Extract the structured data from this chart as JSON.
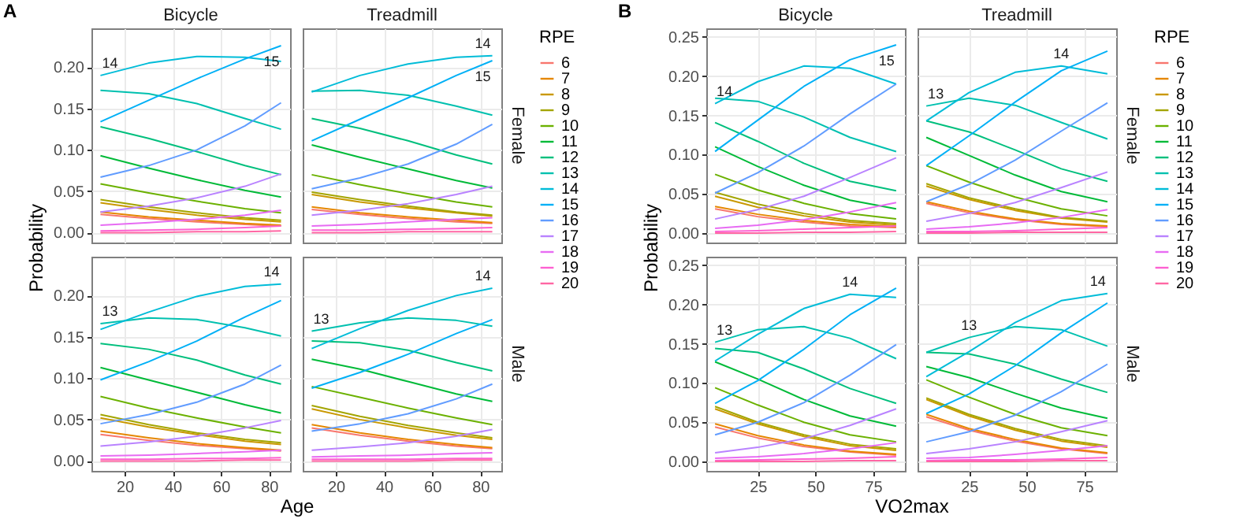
{
  "chart_data": [
    {
      "type": "line",
      "title": "Bicycle",
      "ylabel": "Probability",
      "annotations": [
        "A",
        {
          "text": "14",
          "x": 10,
          "y": 0.19
        },
        {
          "text": "15",
          "x": 85,
          "y": 0.226
        }
      ],
      "x": [
        10,
        30,
        50,
        70,
        85
      ],
      "xlim": [
        6.25,
        88.75
      ],
      "xticks": [
        20,
        40,
        60,
        80
      ],
      "ylim": [
        -0.012,
        0.247
      ],
      "yticks": [
        {
          "value": 0,
          "label": "0.00"
        },
        {
          "value": 0.05,
          "label": "0.05"
        },
        {
          "value": 0.1,
          "label": "0.10"
        },
        {
          "value": 0.15,
          "label": "0.15"
        },
        {
          "value": 0.2,
          "label": "0.20"
        }
      ],
      "tick_labels": "y",
      "grid": true,
      "series": [
        {
          "color": "#f8766d",
          "values": [
            0.022,
            0.017,
            0.013,
            0.01,
            0.008
          ]
        },
        {
          "color": "#e58700",
          "values": [
            0.025,
            0.019,
            0.015,
            0.011,
            0.009
          ]
        },
        {
          "color": "#c99800",
          "values": [
            0.036,
            0.028,
            0.021,
            0.016,
            0.013
          ]
        },
        {
          "color": "#a3a500",
          "values": [
            0.04,
            0.031,
            0.024,
            0.018,
            0.015
          ]
        },
        {
          "color": "#6bb100",
          "values": [
            0.059,
            0.048,
            0.038,
            0.029,
            0.024
          ]
        },
        {
          "color": "#00ba38",
          "values": [
            0.093,
            0.078,
            0.064,
            0.051,
            0.043
          ]
        },
        {
          "color": "#00bf7d",
          "values": [
            0.128,
            0.114,
            0.098,
            0.081,
            0.07
          ]
        },
        {
          "color": "#00c0af",
          "values": [
            0.172,
            0.168,
            0.156,
            0.138,
            0.125
          ]
        },
        {
          "color": "#00bcd8",
          "values": [
            0.19,
            0.205,
            0.213,
            0.212,
            0.207
          ]
        },
        {
          "color": "#00b0f6",
          "values": [
            0.134,
            0.16,
            0.186,
            0.21,
            0.226
          ]
        },
        {
          "color": "#619cff",
          "values": [
            0.067,
            0.081,
            0.1,
            0.129,
            0.157
          ]
        },
        {
          "color": "#b983ff",
          "values": [
            0.025,
            0.032,
            0.042,
            0.056,
            0.071
          ]
        },
        {
          "color": "#e76bf3",
          "values": [
            0.009,
            0.012,
            0.016,
            0.021,
            0.027
          ]
        },
        {
          "color": "#fd61d1",
          "values": [
            0.002,
            0.003,
            0.004,
            0.006,
            0.008
          ]
        },
        {
          "color": "#ff67a4",
          "values": [
            0.0,
            0.0,
            0.001,
            0.001,
            0.002
          ]
        }
      ]
    },
    {
      "type": "line",
      "title": "Treadmill",
      "subtitle": "Female",
      "legend_title": "RPE",
      "legend": "right",
      "annotations": [
        {
          "text": "14",
          "x": 85,
          "y": 0.214
        },
        {
          "text": "15",
          "x": 85,
          "y": 0.208
        }
      ],
      "x": [
        10,
        30,
        50,
        70,
        85
      ],
      "xlim": [
        6.25,
        88.75
      ],
      "xticks": [
        20,
        40,
        60,
        80
      ],
      "ylim": [
        -0.012,
        0.247
      ],
      "yticks": [
        0,
        0.05,
        0.1,
        0.15,
        0.2
      ],
      "tick_labels": false,
      "grid": true,
      "series": [
        {
          "name": "6",
          "color": "#f8766d",
          "values": [
            0.028,
            0.022,
            0.017,
            0.013,
            0.011
          ]
        },
        {
          "name": "7",
          "color": "#e58700",
          "values": [
            0.031,
            0.024,
            0.019,
            0.015,
            0.012
          ]
        },
        {
          "name": "8",
          "color": "#c99800",
          "values": [
            0.046,
            0.037,
            0.03,
            0.024,
            0.02
          ]
        },
        {
          "name": "9",
          "color": "#a3a500",
          "values": [
            0.049,
            0.04,
            0.032,
            0.025,
            0.021
          ]
        },
        {
          "name": "10",
          "color": "#6bb100",
          "values": [
            0.07,
            0.058,
            0.047,
            0.037,
            0.031
          ]
        },
        {
          "name": "11",
          "color": "#00ba38",
          "values": [
            0.106,
            0.091,
            0.077,
            0.063,
            0.054
          ]
        },
        {
          "name": "12",
          "color": "#00bf7d",
          "values": [
            0.138,
            0.126,
            0.111,
            0.094,
            0.083
          ]
        },
        {
          "name": "13",
          "color": "#00c0af",
          "values": [
            0.171,
            0.172,
            0.166,
            0.153,
            0.142
          ]
        },
        {
          "name": "14",
          "color": "#00bcd8",
          "values": [
            0.17,
            0.19,
            0.204,
            0.212,
            0.214
          ]
        },
        {
          "name": "15",
          "color": "#00b0f6",
          "values": [
            0.111,
            0.137,
            0.163,
            0.19,
            0.208
          ]
        },
        {
          "name": "16",
          "color": "#619cff",
          "values": [
            0.053,
            0.066,
            0.083,
            0.107,
            0.131
          ]
        },
        {
          "name": "17",
          "color": "#b983ff",
          "values": [
            0.021,
            0.027,
            0.035,
            0.046,
            0.056
          ]
        },
        {
          "name": "18",
          "color": "#e76bf3",
          "values": [
            0.008,
            0.01,
            0.013,
            0.016,
            0.018
          ]
        },
        {
          "name": "19",
          "color": "#fd61d1",
          "values": [
            0.003,
            0.003,
            0.004,
            0.005,
            0.006
          ]
        },
        {
          "name": "20",
          "color": "#ff67a4",
          "values": [
            0.0,
            0.0,
            0.001,
            0.001,
            0.001
          ]
        }
      ]
    },
    {
      "type": "line",
      "xlabel": "Age",
      "annotations": [
        {
          "text": "13",
          "x": 10,
          "y": 0.166
        },
        {
          "text": "14",
          "x": 85,
          "y": 0.214
        }
      ],
      "x": [
        10,
        30,
        50,
        70,
        85
      ],
      "xlim": [
        6.25,
        88.75
      ],
      "xticks": [
        20,
        40,
        60,
        80
      ],
      "ylim": [
        -0.012,
        0.247
      ],
      "yticks": [
        {
          "value": 0,
          "label": "0.00"
        },
        {
          "value": 0.05,
          "label": "0.05"
        },
        {
          "value": 0.1,
          "label": "0.10"
        },
        {
          "value": 0.15,
          "label": "0.15"
        },
        {
          "value": 0.2,
          "label": "0.20"
        }
      ],
      "grid": true,
      "series": [
        {
          "color": "#f8766d",
          "values": [
            0.032,
            0.025,
            0.019,
            0.015,
            0.012
          ]
        },
        {
          "color": "#e58700",
          "values": [
            0.036,
            0.028,
            0.021,
            0.016,
            0.013
          ]
        },
        {
          "color": "#c99800",
          "values": [
            0.052,
            0.041,
            0.032,
            0.024,
            0.02
          ]
        },
        {
          "color": "#a3a500",
          "values": [
            0.056,
            0.044,
            0.034,
            0.026,
            0.022
          ]
        },
        {
          "color": "#6bb100",
          "values": [
            0.078,
            0.064,
            0.052,
            0.041,
            0.034
          ]
        },
        {
          "color": "#00ba38",
          "values": [
            0.113,
            0.098,
            0.083,
            0.068,
            0.058
          ]
        },
        {
          "color": "#00bf7d",
          "values": [
            0.142,
            0.135,
            0.122,
            0.104,
            0.093
          ]
        },
        {
          "color": "#00c0af",
          "values": [
            0.166,
            0.173,
            0.171,
            0.161,
            0.151
          ]
        },
        {
          "color": "#00bcd8",
          "values": [
            0.159,
            0.18,
            0.199,
            0.211,
            0.214
          ]
        },
        {
          "color": "#00b0f6",
          "values": [
            0.098,
            0.12,
            0.145,
            0.174,
            0.194
          ]
        },
        {
          "color": "#619cff",
          "values": [
            0.045,
            0.056,
            0.071,
            0.093,
            0.116
          ]
        },
        {
          "color": "#b983ff",
          "values": [
            0.018,
            0.023,
            0.03,
            0.04,
            0.049
          ]
        },
        {
          "color": "#e76bf3",
          "values": [
            0.006,
            0.007,
            0.009,
            0.011,
            0.013
          ]
        },
        {
          "color": "#fd61d1",
          "values": [
            0.002,
            0.002,
            0.003,
            0.003,
            0.004
          ]
        },
        {
          "color": "#ff67a4",
          "values": [
            0.0,
            0.0,
            0.0,
            0.001,
            0.001
          ]
        }
      ]
    },
    {
      "type": "line",
      "subtitle": "Male",
      "annotations": [
        {
          "text": "13",
          "x": 10,
          "y": 0.157
        },
        {
          "text": "14",
          "x": 85,
          "y": 0.209
        }
      ],
      "x": [
        10,
        30,
        50,
        70,
        85
      ],
      "xlim": [
        6.25,
        88.75
      ],
      "xticks": [
        20,
        40,
        60,
        80
      ],
      "ylim": [
        -0.012,
        0.247
      ],
      "yticks": [
        0,
        0.05,
        0.1,
        0.15,
        0.2
      ],
      "tick_labels": "x",
      "grid": true,
      "series": [
        {
          "color": "#f8766d",
          "values": [
            0.04,
            0.031,
            0.024,
            0.018,
            0.015
          ]
        },
        {
          "color": "#e58700",
          "values": [
            0.044,
            0.034,
            0.026,
            0.02,
            0.016
          ]
        },
        {
          "color": "#c99800",
          "values": [
            0.063,
            0.05,
            0.04,
            0.031,
            0.026
          ]
        },
        {
          "color": "#a3a500",
          "values": [
            0.067,
            0.054,
            0.043,
            0.034,
            0.028
          ]
        },
        {
          "color": "#6bb100",
          "values": [
            0.09,
            0.077,
            0.064,
            0.052,
            0.044
          ]
        },
        {
          "color": "#00ba38",
          "values": [
            0.123,
            0.111,
            0.096,
            0.081,
            0.072
          ]
        },
        {
          "color": "#00bf7d",
          "values": [
            0.145,
            0.143,
            0.134,
            0.119,
            0.109
          ]
        },
        {
          "color": "#00c0af",
          "values": [
            0.157,
            0.167,
            0.173,
            0.17,
            0.163
          ]
        },
        {
          "color": "#00bcd8",
          "values": [
            0.136,
            0.16,
            0.182,
            0.2,
            0.209
          ]
        },
        {
          "color": "#00b0f6",
          "values": [
            0.088,
            0.107,
            0.129,
            0.154,
            0.171
          ]
        },
        {
          "color": "#619cff",
          "values": [
            0.036,
            0.045,
            0.057,
            0.075,
            0.093
          ]
        },
        {
          "color": "#b983ff",
          "values": [
            0.013,
            0.017,
            0.022,
            0.03,
            0.038
          ]
        },
        {
          "color": "#e76bf3",
          "values": [
            0.005,
            0.006,
            0.007,
            0.009,
            0.01
          ]
        },
        {
          "color": "#fd61d1",
          "values": [
            0.002,
            0.002,
            0.002,
            0.003,
            0.003
          ]
        },
        {
          "color": "#ff67a4",
          "values": [
            0.0,
            0.0,
            0.0,
            0.001,
            0.001
          ]
        }
      ]
    },
    {
      "type": "line",
      "title": "Bicycle",
      "ylabel": "Probability",
      "annotations": [
        "B",
        {
          "text": "14",
          "x": 6.5,
          "y": 0.165
        },
        {
          "text": "15",
          "x": 85,
          "y": 0.24
        }
      ],
      "x": [
        6.5,
        25,
        45,
        65,
        85
      ],
      "xlim": [
        2.7,
        88.8
      ],
      "xticks": [
        25,
        50,
        75
      ],
      "ylim": [
        -0.012,
        0.261
      ],
      "yticks": [
        {
          "value": 0,
          "label": "0.00"
        },
        {
          "value": 0.05,
          "label": "0.05"
        },
        {
          "value": 0.1,
          "label": "0.10"
        },
        {
          "value": 0.15,
          "label": "0.15"
        },
        {
          "value": 0.2,
          "label": "0.20"
        },
        {
          "value": 0.25,
          "label": "0.25"
        }
      ],
      "tick_labels": "y",
      "grid": true,
      "series": [
        {
          "color": "#f8766d",
          "values": [
            0.031,
            0.021,
            0.014,
            0.009,
            0.007
          ]
        },
        {
          "color": "#e58700",
          "values": [
            0.034,
            0.024,
            0.016,
            0.011,
            0.008
          ]
        },
        {
          "color": "#c99800",
          "values": [
            0.047,
            0.033,
            0.022,
            0.014,
            0.01
          ]
        },
        {
          "color": "#a3a500",
          "values": [
            0.052,
            0.037,
            0.025,
            0.016,
            0.012
          ]
        },
        {
          "color": "#6bb100",
          "values": [
            0.075,
            0.055,
            0.038,
            0.025,
            0.018
          ]
        },
        {
          "color": "#00ba38",
          "values": [
            0.11,
            0.085,
            0.061,
            0.042,
            0.031
          ]
        },
        {
          "color": "#00bf7d",
          "values": [
            0.141,
            0.117,
            0.089,
            0.066,
            0.054
          ]
        },
        {
          "color": "#00c0af",
          "values": [
            0.172,
            0.168,
            0.148,
            0.122,
            0.104
          ]
        },
        {
          "color": "#00bcd8",
          "values": [
            0.165,
            0.193,
            0.213,
            0.21,
            0.19
          ]
        },
        {
          "color": "#00b0f6",
          "values": [
            0.104,
            0.144,
            0.187,
            0.221,
            0.24
          ]
        },
        {
          "color": "#619cff",
          "values": [
            0.051,
            0.077,
            0.111,
            0.152,
            0.19
          ]
        },
        {
          "color": "#b983ff",
          "values": [
            0.018,
            0.03,
            0.047,
            0.071,
            0.096
          ]
        },
        {
          "color": "#e76bf3",
          "values": [
            0.006,
            0.01,
            0.017,
            0.027,
            0.039
          ]
        },
        {
          "color": "#fd61d1",
          "values": [
            0.002,
            0.003,
            0.005,
            0.007,
            0.009
          ]
        },
        {
          "color": "#ff67a4",
          "values": [
            0.0,
            0.0,
            0.001,
            0.001,
            0.002
          ]
        }
      ]
    },
    {
      "type": "line",
      "title": "Treadmill",
      "subtitle": "Female",
      "legend_title": "RPE",
      "legend": "right",
      "annotations": [
        {
          "text": "13",
          "x": 6.5,
          "y": 0.162
        },
        {
          "text": "14",
          "x": 65,
          "y": 0.213
        }
      ],
      "x": [
        6.5,
        25,
        45,
        65,
        85
      ],
      "xlim": [
        2.7,
        88.8
      ],
      "xticks": [
        25,
        50,
        75
      ],
      "ylim": [
        -0.012,
        0.261
      ],
      "yticks": [
        0,
        0.05,
        0.1,
        0.15,
        0.2,
        0.25
      ],
      "tick_labels": false,
      "grid": true,
      "series": [
        {
          "name": "6",
          "color": "#f8766d",
          "values": [
            0.038,
            0.026,
            0.017,
            0.011,
            0.008
          ]
        },
        {
          "name": "7",
          "color": "#e58700",
          "values": [
            0.04,
            0.028,
            0.018,
            0.012,
            0.009
          ]
        },
        {
          "name": "8",
          "color": "#c99800",
          "values": [
            0.06,
            0.043,
            0.029,
            0.019,
            0.014
          ]
        },
        {
          "name": "9",
          "color": "#a3a500",
          "values": [
            0.063,
            0.045,
            0.031,
            0.02,
            0.015
          ]
        },
        {
          "name": "10",
          "color": "#6bb100",
          "values": [
            0.086,
            0.065,
            0.046,
            0.031,
            0.022
          ]
        },
        {
          "name": "11",
          "color": "#00ba38",
          "values": [
            0.122,
            0.099,
            0.074,
            0.053,
            0.04
          ]
        },
        {
          "name": "12",
          "color": "#00bf7d",
          "values": [
            0.143,
            0.129,
            0.106,
            0.082,
            0.066
          ]
        },
        {
          "name": "13",
          "color": "#00c0af",
          "values": [
            0.162,
            0.172,
            0.163,
            0.141,
            0.12
          ]
        },
        {
          "name": "14",
          "color": "#00bcd8",
          "values": [
            0.143,
            0.179,
            0.205,
            0.213,
            0.203
          ]
        },
        {
          "name": "15",
          "color": "#00b0f6",
          "values": [
            0.086,
            0.124,
            0.167,
            0.207,
            0.232
          ]
        },
        {
          "name": "16",
          "color": "#619cff",
          "values": [
            0.04,
            0.062,
            0.093,
            0.13,
            0.166
          ]
        },
        {
          "name": "17",
          "color": "#b983ff",
          "values": [
            0.015,
            0.025,
            0.039,
            0.058,
            0.078
          ]
        },
        {
          "name": "18",
          "color": "#e76bf3",
          "values": [
            0.005,
            0.008,
            0.013,
            0.02,
            0.03
          ]
        },
        {
          "name": "19",
          "color": "#fd61d1",
          "values": [
            0.002,
            0.002,
            0.003,
            0.005,
            0.007
          ]
        },
        {
          "name": "20",
          "color": "#ff67a4",
          "values": [
            0.0,
            0.0,
            0.001,
            0.001,
            0.001
          ]
        }
      ]
    },
    {
      "type": "line",
      "xlabel": "VO2max",
      "annotations": [
        {
          "text": "13",
          "x": 6.5,
          "y": 0.152
        },
        {
          "text": "14",
          "x": 65,
          "y": 0.213
        }
      ],
      "x": [
        6.5,
        25,
        45,
        65,
        85
      ],
      "xlim": [
        2.7,
        88.8
      ],
      "xticks": [
        25,
        50,
        75
      ],
      "ylim": [
        -0.012,
        0.261
      ],
      "yticks": [
        {
          "value": 0,
          "label": "0.00"
        },
        {
          "value": 0.05,
          "label": "0.05"
        },
        {
          "value": 0.1,
          "label": "0.10"
        },
        {
          "value": 0.15,
          "label": "0.15"
        },
        {
          "value": 0.2,
          "label": "0.20"
        },
        {
          "value": 0.25,
          "label": "0.25"
        }
      ],
      "grid": true,
      "series": [
        {
          "color": "#f8766d",
          "values": [
            0.044,
            0.03,
            0.019,
            0.012,
            0.008
          ]
        },
        {
          "color": "#e58700",
          "values": [
            0.048,
            0.033,
            0.021,
            0.013,
            0.009
          ]
        },
        {
          "color": "#c99800",
          "values": [
            0.067,
            0.048,
            0.032,
            0.02,
            0.014
          ]
        },
        {
          "color": "#a3a500",
          "values": [
            0.07,
            0.05,
            0.034,
            0.022,
            0.016
          ]
        },
        {
          "color": "#6bb100",
          "values": [
            0.094,
            0.072,
            0.05,
            0.034,
            0.025
          ]
        },
        {
          "color": "#00ba38",
          "values": [
            0.127,
            0.105,
            0.079,
            0.058,
            0.045
          ]
        },
        {
          "color": "#00bf7d",
          "values": [
            0.144,
            0.139,
            0.118,
            0.093,
            0.074
          ]
        },
        {
          "color": "#00c0af",
          "values": [
            0.152,
            0.168,
            0.172,
            0.157,
            0.131
          ]
        },
        {
          "color": "#00bcd8",
          "values": [
            0.128,
            0.162,
            0.195,
            0.213,
            0.209
          ]
        },
        {
          "color": "#00b0f6",
          "values": [
            0.074,
            0.103,
            0.143,
            0.187,
            0.221
          ]
        },
        {
          "color": "#619cff",
          "values": [
            0.034,
            0.05,
            0.075,
            0.11,
            0.149
          ]
        },
        {
          "color": "#b983ff",
          "values": [
            0.011,
            0.018,
            0.029,
            0.046,
            0.067
          ]
        },
        {
          "color": "#e76bf3",
          "values": [
            0.004,
            0.006,
            0.01,
            0.016,
            0.024
          ]
        },
        {
          "color": "#fd61d1",
          "values": [
            0.001,
            0.002,
            0.003,
            0.004,
            0.006
          ]
        },
        {
          "color": "#ff67a4",
          "values": [
            0.0,
            0.0,
            0.0,
            0.001,
            0.001
          ]
        }
      ]
    },
    {
      "type": "line",
      "subtitle": "Male",
      "annotations": [
        {
          "text": "13",
          "x": 25,
          "y": 0.158
        },
        {
          "text": "14",
          "x": 85,
          "y": 0.214
        }
      ],
      "x": [
        6.5,
        25,
        45,
        65,
        85
      ],
      "xlim": [
        2.7,
        88.8
      ],
      "xticks": [
        25,
        50,
        75
      ],
      "ylim": [
        -0.012,
        0.261
      ],
      "yticks": [
        0,
        0.05,
        0.1,
        0.15,
        0.2,
        0.25
      ],
      "tick_labels": "x",
      "grid": true,
      "series": [
        {
          "color": "#f8766d",
          "values": [
            0.057,
            0.04,
            0.026,
            0.016,
            0.01
          ]
        },
        {
          "color": "#e58700",
          "values": [
            0.06,
            0.042,
            0.028,
            0.017,
            0.011
          ]
        },
        {
          "color": "#c99800",
          "values": [
            0.079,
            0.058,
            0.04,
            0.026,
            0.018
          ]
        },
        {
          "color": "#a3a500",
          "values": [
            0.081,
            0.06,
            0.042,
            0.028,
            0.02
          ]
        },
        {
          "color": "#6bb100",
          "values": [
            0.104,
            0.082,
            0.06,
            0.043,
            0.033
          ]
        },
        {
          "color": "#00ba38",
          "values": [
            0.121,
            0.107,
            0.087,
            0.068,
            0.055
          ]
        },
        {
          "color": "#00bf7d",
          "values": [
            0.139,
            0.137,
            0.124,
            0.105,
            0.088
          ]
        },
        {
          "color": "#00c0af",
          "values": [
            0.139,
            0.158,
            0.172,
            0.168,
            0.147
          ]
        },
        {
          "color": "#00bcd8",
          "values": [
            0.108,
            0.14,
            0.177,
            0.205,
            0.214
          ]
        },
        {
          "color": "#00b0f6",
          "values": [
            0.061,
            0.086,
            0.122,
            0.164,
            0.202
          ]
        },
        {
          "color": "#619cff",
          "values": [
            0.025,
            0.038,
            0.059,
            0.089,
            0.124
          ]
        },
        {
          "color": "#b983ff",
          "values": [
            0.01,
            0.016,
            0.025,
            0.038,
            0.052
          ]
        },
        {
          "color": "#e76bf3",
          "values": [
            0.004,
            0.005,
            0.009,
            0.014,
            0.02
          ]
        },
        {
          "color": "#fd61d1",
          "values": [
            0.001,
            0.002,
            0.002,
            0.003,
            0.005
          ]
        },
        {
          "color": "#ff67a4",
          "values": [
            0.0,
            0.0,
            0.0,
            0.001,
            0.001
          ]
        }
      ]
    }
  ]
}
